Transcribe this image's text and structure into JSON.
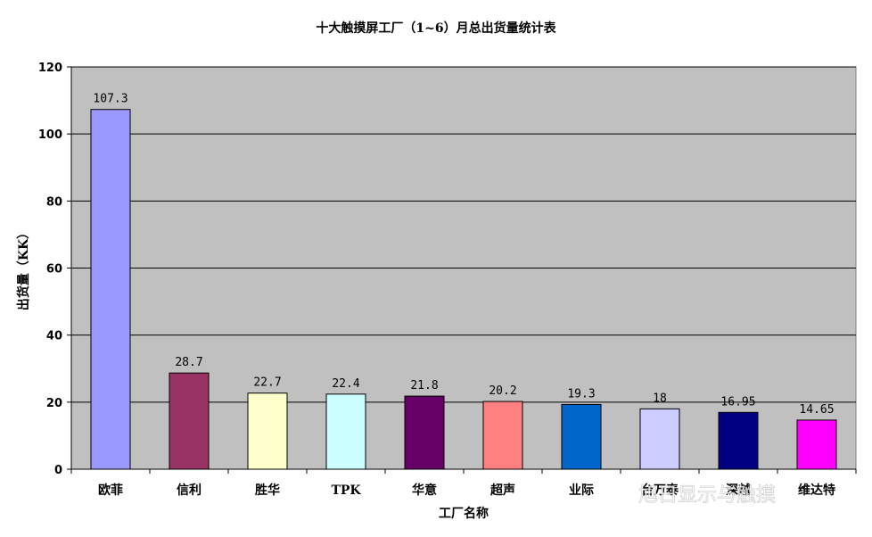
{
  "chart_data": {
    "type": "bar",
    "title": "十大触摸屏工厂（1~6）月总出货量统计表",
    "xlabel": "工厂名称",
    "ylabel": "出货量（KK）",
    "categories": [
      "欧菲",
      "信利",
      "胜华",
      "TPK",
      "华意",
      "超声",
      "业际",
      "台万泰",
      "深越",
      "维达特"
    ],
    "values": [
      107.3,
      28.7,
      22.7,
      22.4,
      21.8,
      20.2,
      19.3,
      18,
      16.95,
      14.65
    ],
    "value_labels": [
      "107.3",
      "28.7",
      "22.7",
      "22.4",
      "21.8",
      "20.2",
      "19.3",
      "18",
      "16.95",
      "14.65"
    ],
    "bar_colors": [
      "#9999ff",
      "#993366",
      "#ffffcc",
      "#ccffff",
      "#660066",
      "#ff8080",
      "#0066cc",
      "#ccccff",
      "#000080",
      "#ff00ff"
    ],
    "ylim": [
      0,
      120
    ],
    "yticks": [
      0,
      20,
      40,
      60,
      80,
      100,
      120
    ],
    "grid": true,
    "legend": "none",
    "plot_background": "#c0c0c0"
  },
  "watermark": {
    "text": "旭日显示与触摸",
    "icon": "wechat-icon"
  }
}
